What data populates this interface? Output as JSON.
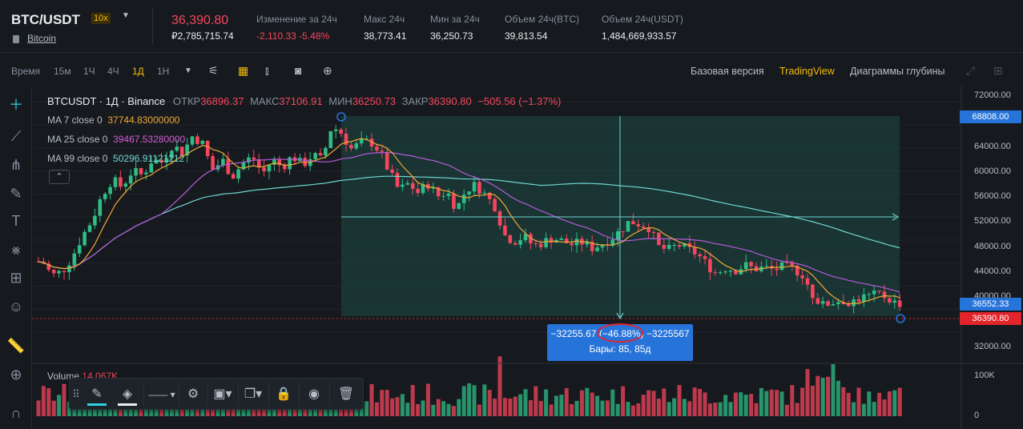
{
  "ticker": {
    "symbol": "BTC/USDT",
    "leverage": "10x",
    "subtitle": "Bitcoin",
    "last_price": "36,390.80",
    "fiat_price": "₽2,785,715.74",
    "stats": [
      {
        "label": "Изменение за 24ч",
        "value": "-2,110.33 -5.48%",
        "negative": true
      },
      {
        "label": "Макс 24ч",
        "value": "38,773.41"
      },
      {
        "label": "Мин за 24ч",
        "value": "36,250.73"
      },
      {
        "label": "Объем 24ч(BTC)",
        "value": "39,813.54"
      },
      {
        "label": "Объем 24ч(USDT)",
        "value": "1,484,669,933.57"
      }
    ]
  },
  "toolbar": {
    "time_label": "Время",
    "intervals": [
      "15м",
      "1Ч",
      "4Ч",
      "1Д",
      "1Н"
    ],
    "active_interval": "1Д",
    "views": [
      "Базовая версия",
      "TradingView",
      "Диаграммы глубины"
    ],
    "active_view": "TradingView"
  },
  "drawing_tools": [
    "crosshair-icon",
    "trend-line-icon",
    "pitchfork-icon",
    "brush-icon",
    "text-icon",
    "pattern-icon",
    "measure-icon",
    "emoji-icon",
    "ruler-icon",
    "zoom-in-icon",
    "magnet-icon"
  ],
  "legend": {
    "title": "BTCUSDT · 1Д · Binance",
    "ohlc": [
      {
        "label": "ОТКР",
        "value": "36896.37"
      },
      {
        "label": "МАКС",
        "value": "37106.91"
      },
      {
        "label": "МИН",
        "value": "36250.73"
      },
      {
        "label": "ЗАКР",
        "value": "36390.80"
      }
    ],
    "change": "−505.56 (−1.37%)",
    "ma": [
      {
        "label": "MA 7 close 0",
        "value": "37744.83000000",
        "color": "#f0a836"
      },
      {
        "label": "MA 25 close 0",
        "value": "39467.53280000",
        "color": "#d55bd6"
      },
      {
        "label": "MA 99 close 0",
        "value": "50296.91121212",
        "color": "#6fd5d0"
      }
    ],
    "collapse_glyph": "⌃"
  },
  "volume": {
    "label": "Volume",
    "value": "14.067K"
  },
  "chart_data": {
    "type": "candlestick",
    "price_axis_ticks": [
      72000,
      68000,
      64000,
      60000,
      56000,
      52000,
      48000,
      44000,
      40000,
      36000,
      32000
    ],
    "price_axis_labels": [
      "72000.00",
      "68000.00",
      "64000.00",
      "60000.00",
      "56000.00",
      "52000.00",
      "48000.00",
      "44000.00",
      "40000.00",
      "32000.00"
    ],
    "ylim": [
      29500,
      73000
    ],
    "volume_ticks": [
      "100K",
      "0"
    ],
    "volume_max": 120,
    "colors": {
      "up": "#2ebd85",
      "down": "#f6465d",
      "ma7": "#f0a836",
      "ma25": "#b45ad8",
      "ma99": "#6fd5d0"
    }
  },
  "price_tags": [
    {
      "value": "68808.00",
      "color": "#2673d9"
    },
    {
      "value": "36552.33",
      "color": "#2673d9"
    },
    {
      "value": "36390.80",
      "color": "#e3242b"
    }
  ],
  "measure": {
    "value_change": "−32255.67",
    "percent_change": "(−46.88%)",
    "ticks": "−3225567",
    "bars_text": "Бары: 85, 85д",
    "start_price": 68808,
    "end_price": 36552.33,
    "bars": 85
  },
  "edit_bar": {
    "icons": [
      "drag-handle-icon",
      "pencil-icon",
      "fill-bucket-icon",
      "line-style-icon",
      "settings-icon",
      "template-icon",
      "clone-icon",
      "lock-icon",
      "eye-icon",
      "trash-icon"
    ]
  }
}
